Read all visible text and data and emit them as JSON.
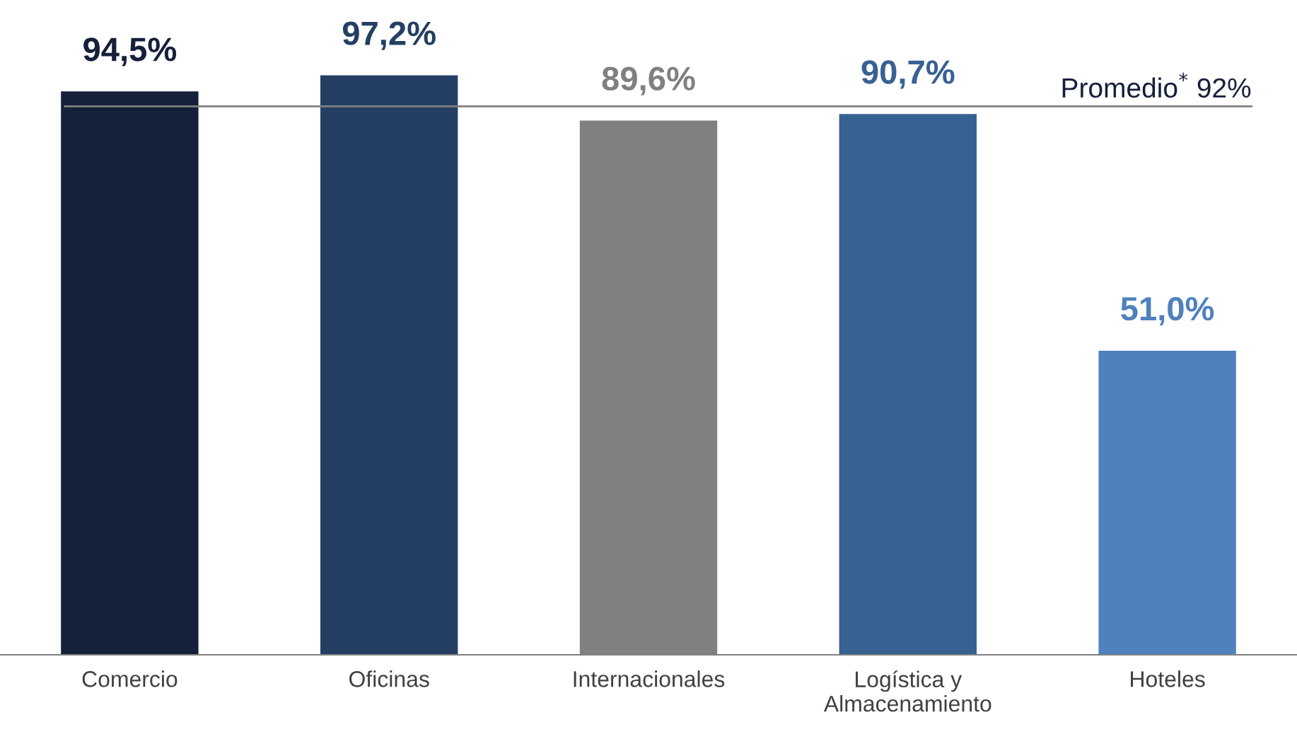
{
  "chart_data": {
    "type": "bar",
    "categories": [
      "Comercio",
      "Oficinas",
      "Internacionales",
      "Logística y\nAlmacenamiento",
      "Hoteles"
    ],
    "values": [
      94.5,
      97.2,
      89.6,
      90.7,
      51.0
    ],
    "colors": [
      "#15203a",
      "#243f63",
      "#808080",
      "#386193",
      "#4f81bd"
    ],
    "value_labels": [
      "94,5%",
      "97,2%",
      "89,6%",
      "90,7%",
      "51,0%"
    ],
    "tick_labels": "x",
    "grid": false,
    "legend": false,
    "ref_lines": [
      {
        "axis": "y",
        "value": 92,
        "label": "Promedio$^{*}$ 92%",
        "color": "#808080"
      }
    ]
  }
}
